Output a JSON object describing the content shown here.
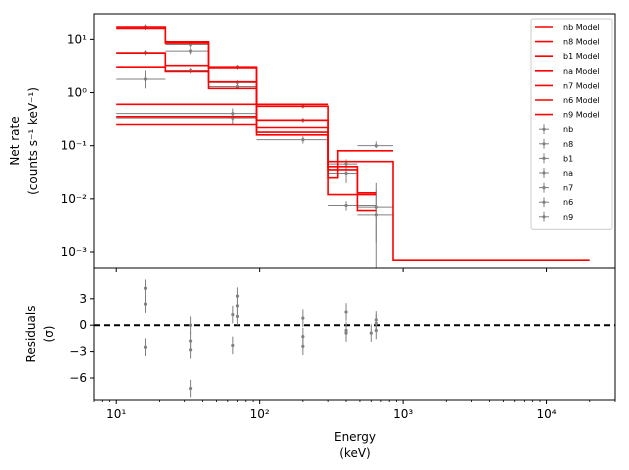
{
  "chart_data": [
    {
      "type": "step-and-errorbar",
      "xlabel_line1": "",
      "ylabel_line1": "Net rate",
      "ylabel_line2": "(counts s⁻¹ keV⁻¹)",
      "xscale": "log",
      "yscale": "log",
      "xlim": [
        7,
        30000
      ],
      "ylim": [
        0.0005,
        30
      ],
      "yticks": [
        {
          "value": 0.001,
          "label": "10⁻³"
        },
        {
          "value": 0.01,
          "label": "10⁻²"
        },
        {
          "value": 0.1,
          "label": "10⁻¹"
        },
        {
          "value": 1,
          "label": "10⁰"
        },
        {
          "value": 10,
          "label": "10¹"
        }
      ],
      "legend": {
        "placement": "top-right",
        "entries": [
          {
            "label": "nb Model",
            "kind": "line",
            "color": "#ff0000"
          },
          {
            "label": "n8 Model",
            "kind": "line",
            "color": "#ff0000"
          },
          {
            "label": "b1 Model",
            "kind": "line",
            "color": "#ff0000"
          },
          {
            "label": "na Model",
            "kind": "line",
            "color": "#ff0000"
          },
          {
            "label": "n7 Model",
            "kind": "line",
            "color": "#ff0000"
          },
          {
            "label": "n6 Model",
            "kind": "line",
            "color": "#ff0000"
          },
          {
            "label": "n9 Model",
            "kind": "line",
            "color": "#ff0000"
          },
          {
            "label": "nb",
            "kind": "errorbar",
            "color": "#808080"
          },
          {
            "label": "n8",
            "kind": "errorbar",
            "color": "#808080"
          },
          {
            "label": "b1",
            "kind": "errorbar",
            "color": "#808080"
          },
          {
            "label": "na",
            "kind": "errorbar",
            "color": "#808080"
          },
          {
            "label": "n7",
            "kind": "errorbar",
            "color": "#808080"
          },
          {
            "label": "n6",
            "kind": "errorbar",
            "color": "#808080"
          },
          {
            "label": "n9",
            "kind": "errorbar",
            "color": "#808080"
          }
        ]
      },
      "model_color": "#ff0000",
      "data_color": "#808080",
      "model_steps": [
        {
          "edges": [
            10,
            22,
            44,
            95,
            300,
            850,
            20000
          ],
          "values": [
            17,
            9,
            3,
            0.55,
            0.05,
            0.0007
          ]
        },
        {
          "edges": [
            10,
            22,
            44,
            95,
            300
          ],
          "values": [
            16,
            8.5,
            2.9,
            0.6
          ]
        },
        {
          "edges": [
            10,
            22,
            44,
            95,
            300
          ],
          "values": [
            5.5,
            3.2,
            1.6,
            0.3
          ]
        },
        {
          "edges": [
            10,
            22,
            44,
            95,
            300,
            480,
            650
          ],
          "values": [
            3,
            2.5,
            1.2,
            0.22,
            0.035,
            0.013
          ]
        },
        {
          "edges": [
            10,
            95,
            300,
            480,
            650
          ],
          "values": [
            0.6,
            0.3,
            0.04,
            0.012
          ]
        },
        {
          "edges": [
            10,
            95,
            300,
            350,
            850
          ],
          "values": [
            0.35,
            0.18,
            0.025,
            0.08
          ]
        },
        {
          "edges": [
            10,
            95,
            300,
            480,
            650
          ],
          "values": [
            0.25,
            0.16,
            0.012,
            0.006
          ]
        }
      ],
      "data_points": [
        {
          "x": 16,
          "y": 17,
          "xlo": 10,
          "xhi": 22,
          "ylo": 15,
          "yhi": 19
        },
        {
          "x": 16,
          "y": 5.6,
          "xlo": 10,
          "xhi": 22,
          "ylo": 5.0,
          "yhi": 6.2
        },
        {
          "x": 16,
          "y": 1.8,
          "xlo": 10,
          "xhi": 22,
          "ylo": 1.2,
          "yhi": 2.6
        },
        {
          "x": 33,
          "y": 8,
          "xlo": 22,
          "xhi": 44,
          "ylo": 7.0,
          "yhi": 9.0
        },
        {
          "x": 33,
          "y": 6,
          "xlo": 22,
          "xhi": 44,
          "ylo": 5.2,
          "yhi": 6.8
        },
        {
          "x": 33,
          "y": 2.6,
          "xlo": 22,
          "xhi": 44,
          "ylo": 2.3,
          "yhi": 2.9
        },
        {
          "x": 70,
          "y": 3,
          "xlo": 44,
          "xhi": 95,
          "ylo": 2.7,
          "yhi": 3.3
        },
        {
          "x": 70,
          "y": 1.55,
          "xlo": 44,
          "xhi": 95,
          "ylo": 1.4,
          "yhi": 1.7
        },
        {
          "x": 70,
          "y": 1.3,
          "xlo": 44,
          "xhi": 95,
          "ylo": 1.15,
          "yhi": 1.45
        },
        {
          "x": 65,
          "y": 0.4,
          "xlo": 10,
          "xhi": 95,
          "ylo": 0.3,
          "yhi": 0.5
        },
        {
          "x": 65,
          "y": 0.33,
          "xlo": 10,
          "xhi": 95,
          "ylo": 0.25,
          "yhi": 0.42
        },
        {
          "x": 200,
          "y": 0.55,
          "xlo": 95,
          "xhi": 300,
          "ylo": 0.5,
          "yhi": 0.6
        },
        {
          "x": 200,
          "y": 0.3,
          "xlo": 95,
          "xhi": 300,
          "ylo": 0.27,
          "yhi": 0.33
        },
        {
          "x": 200,
          "y": 0.13,
          "xlo": 95,
          "xhi": 300,
          "ylo": 0.11,
          "yhi": 0.15
        },
        {
          "x": 400,
          "y": 0.045,
          "xlo": 300,
          "xhi": 480,
          "ylo": 0.035,
          "yhi": 0.055
        },
        {
          "x": 400,
          "y": 0.03,
          "xlo": 300,
          "xhi": 480,
          "ylo": 0.02,
          "yhi": 0.04
        },
        {
          "x": 400,
          "y": 0.0075,
          "xlo": 300,
          "xhi": 650,
          "ylo": 0.006,
          "yhi": 0.009
        },
        {
          "x": 650,
          "y": 0.1,
          "xlo": 480,
          "xhi": 850,
          "ylo": 0.09,
          "yhi": 0.12
        },
        {
          "x": 650,
          "y": 0.007,
          "xlo": 480,
          "xhi": 850,
          "ylo": 0.0015,
          "yhi": 0.02
        },
        {
          "x": 650,
          "y": 0.005,
          "xlo": 480,
          "xhi": 850,
          "ylo": 0.0005,
          "yhi": 0.015
        }
      ]
    },
    {
      "type": "scatter-errorbar",
      "xlabel_line1": "Energy",
      "xlabel_line2": "(keV)",
      "ylabel_line1": "Residuals",
      "ylabel_line2": "(σ)",
      "xscale": "log",
      "xlim": [
        7,
        30000
      ],
      "ylim": [
        -8.5,
        6.5
      ],
      "xticks": [
        {
          "value": 10,
          "label": "10¹"
        },
        {
          "value": 100,
          "label": "10²"
        },
        {
          "value": 1000,
          "label": "10³"
        },
        {
          "value": 10000,
          "label": "10⁴"
        }
      ],
      "yticks": [
        {
          "value": 3,
          "label": "3"
        },
        {
          "value": 0,
          "label": "0"
        },
        {
          "value": -3,
          "label": "−3"
        },
        {
          "value": -6,
          "label": "−6"
        }
      ],
      "zero_line": {
        "y": 0,
        "style": "dashed",
        "color": "#000000"
      },
      "data_color": "#808080",
      "points": [
        {
          "x": 16,
          "y": 4.2,
          "yerr": 1
        },
        {
          "x": 16,
          "y": 2.4,
          "yerr": 1
        },
        {
          "x": 16,
          "y": -2.5,
          "yerr": 1
        },
        {
          "x": 33,
          "y": 0,
          "yerr": 1
        },
        {
          "x": 33,
          "y": -1.8,
          "yerr": 1
        },
        {
          "x": 33,
          "y": -2.8,
          "yerr": 1
        },
        {
          "x": 33,
          "y": -7.2,
          "yerr": 1
        },
        {
          "x": 65,
          "y": -2.3,
          "yerr": 1
        },
        {
          "x": 65,
          "y": 1.2,
          "yerr": 1
        },
        {
          "x": 70,
          "y": 3.3,
          "yerr": 1
        },
        {
          "x": 70,
          "y": 2.2,
          "yerr": 1
        },
        {
          "x": 70,
          "y": 1.0,
          "yerr": 1
        },
        {
          "x": 200,
          "y": 0.8,
          "yerr": 1
        },
        {
          "x": 200,
          "y": -1.3,
          "yerr": 1
        },
        {
          "x": 200,
          "y": -2.4,
          "yerr": 1
        },
        {
          "x": 400,
          "y": 1.5,
          "yerr": 1
        },
        {
          "x": 400,
          "y": -0.6,
          "yerr": 1
        },
        {
          "x": 400,
          "y": -0.9,
          "yerr": 1
        },
        {
          "x": 650,
          "y": 0.6,
          "yerr": 1
        },
        {
          "x": 650,
          "y": 0.2,
          "yerr": 1
        },
        {
          "x": 650,
          "y": -0.6,
          "yerr": 1
        },
        {
          "x": 600,
          "y": -0.9,
          "yerr": 1
        }
      ]
    }
  ]
}
